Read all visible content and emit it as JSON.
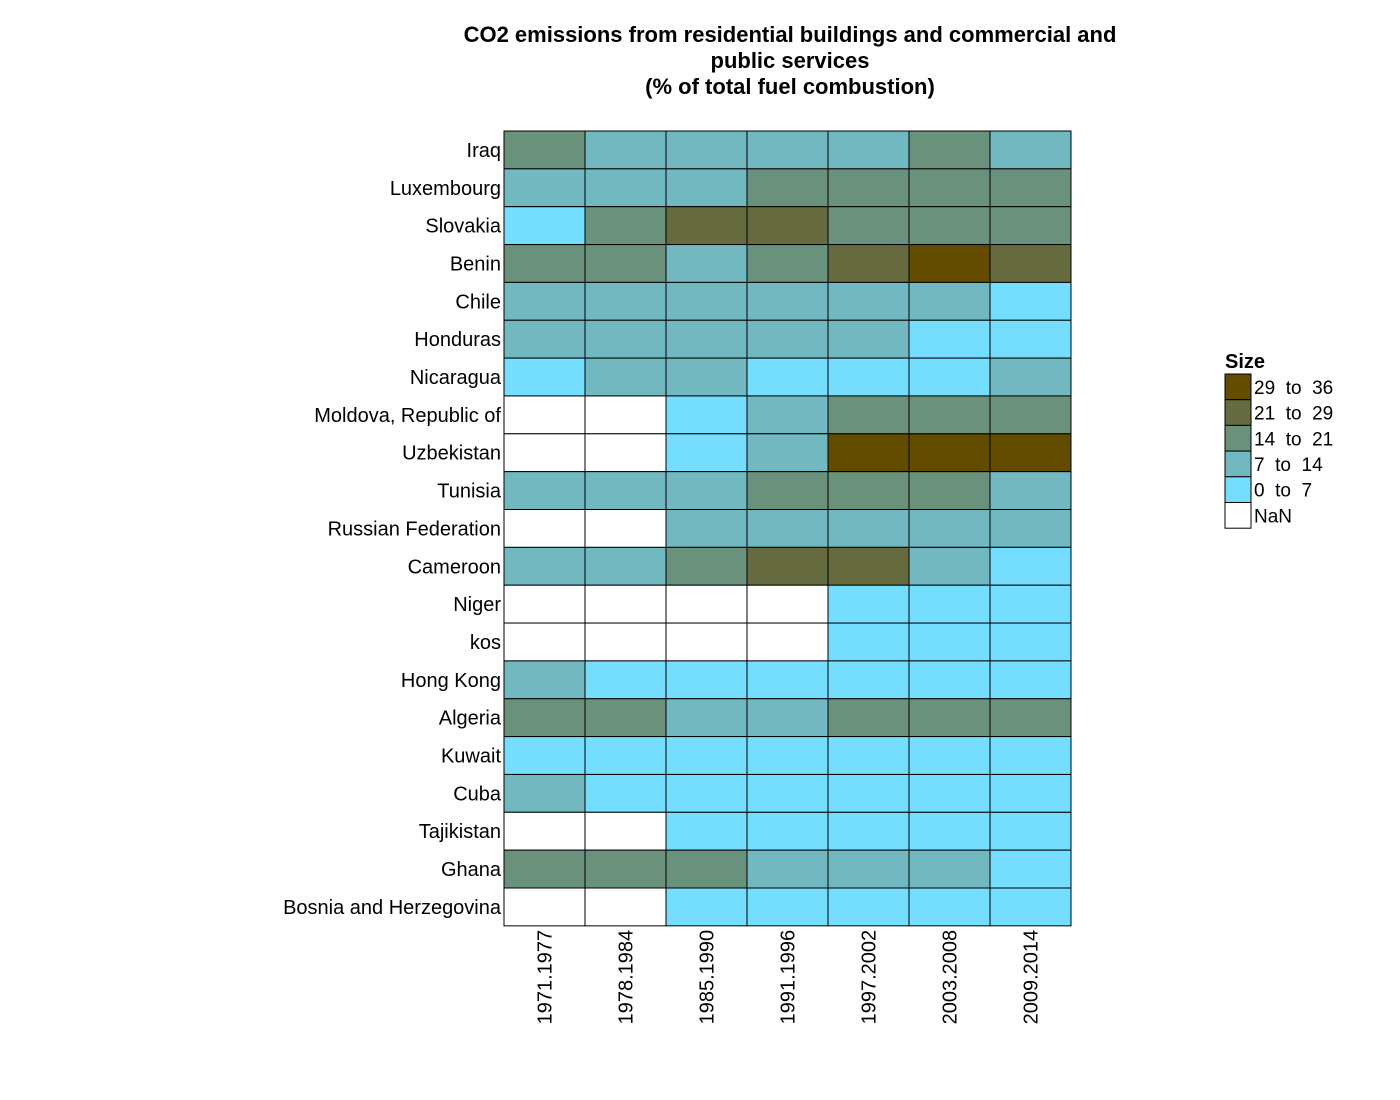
{
  "chart_data": {
    "type": "heatmap",
    "title": [
      "CO2 emissions from residential buildings and commercial and",
      "public services",
      "(% of total fuel combustion)"
    ],
    "x": [
      "1971.1977",
      "1978.1984",
      "1985.1990",
      "1991.1996",
      "1997.2002",
      "2003.2008",
      "2009.2014"
    ],
    "y": [
      "Iraq",
      "Luxembourg",
      "Slovakia",
      "Benin",
      "Chile",
      "Honduras",
      "Nicaragua",
      "Moldova, Republic of",
      "Uzbekistan",
      "Tunisia",
      "Russian Federation",
      "Cameroon",
      "Niger",
      "kos",
      "Hong Kong",
      "Algeria",
      "Kuwait",
      "Cuba",
      "Tajikistan",
      "Ghana",
      "Bosnia and Herzegovina"
    ],
    "bins": [
      {
        "label": "29  to  36",
        "color": "#634b00"
      },
      {
        "label": "21  to  29",
        "color": "#656b3f"
      },
      {
        "label": "14  to  21",
        "color": "#6a917b"
      },
      {
        "label": "7  to  14",
        "color": "#71b8c0"
      },
      {
        "label": "0  to  7",
        "color": "#75ddfd"
      },
      {
        "label": "NaN",
        "color": "#ffffff"
      }
    ],
    "legend_title": "Size",
    "legend_position": "right",
    "values": [
      [
        "14  to  21",
        "7  to  14",
        "7  to  14",
        "7  to  14",
        "7  to  14",
        "14  to  21",
        "7  to  14"
      ],
      [
        "7  to  14",
        "7  to  14",
        "7  to  14",
        "14  to  21",
        "14  to  21",
        "14  to  21",
        "14  to  21"
      ],
      [
        "0  to  7",
        "14  to  21",
        "21  to  29",
        "21  to  29",
        "14  to  21",
        "14  to  21",
        "14  to  21"
      ],
      [
        "14  to  21",
        "14  to  21",
        "7  to  14",
        "14  to  21",
        "21  to  29",
        "29  to  36",
        "21  to  29"
      ],
      [
        "7  to  14",
        "7  to  14",
        "7  to  14",
        "7  to  14",
        "7  to  14",
        "7  to  14",
        "0  to  7"
      ],
      [
        "7  to  14",
        "7  to  14",
        "7  to  14",
        "7  to  14",
        "7  to  14",
        "0  to  7",
        "0  to  7"
      ],
      [
        "0  to  7",
        "7  to  14",
        "7  to  14",
        "0  to  7",
        "0  to  7",
        "0  to  7",
        "7  to  14"
      ],
      [
        "NaN",
        "NaN",
        "0  to  7",
        "7  to  14",
        "14  to  21",
        "14  to  21",
        "14  to  21"
      ],
      [
        "NaN",
        "NaN",
        "0  to  7",
        "7  to  14",
        "29  to  36",
        "29  to  36",
        "29  to  36"
      ],
      [
        "7  to  14",
        "7  to  14",
        "7  to  14",
        "14  to  21",
        "14  to  21",
        "14  to  21",
        "7  to  14"
      ],
      [
        "NaN",
        "NaN",
        "7  to  14",
        "7  to  14",
        "7  to  14",
        "7  to  14",
        "7  to  14"
      ],
      [
        "7  to  14",
        "7  to  14",
        "14  to  21",
        "21  to  29",
        "21  to  29",
        "7  to  14",
        "0  to  7"
      ],
      [
        "NaN",
        "NaN",
        "NaN",
        "NaN",
        "0  to  7",
        "0  to  7",
        "0  to  7"
      ],
      [
        "NaN",
        "NaN",
        "NaN",
        "NaN",
        "0  to  7",
        "0  to  7",
        "0  to  7"
      ],
      [
        "7  to  14",
        "0  to  7",
        "0  to  7",
        "0  to  7",
        "0  to  7",
        "0  to  7",
        "0  to  7"
      ],
      [
        "14  to  21",
        "14  to  21",
        "7  to  14",
        "7  to  14",
        "14  to  21",
        "14  to  21",
        "14  to  21"
      ],
      [
        "0  to  7",
        "0  to  7",
        "0  to  7",
        "0  to  7",
        "0  to  7",
        "0  to  7",
        "0  to  7"
      ],
      [
        "7  to  14",
        "0  to  7",
        "0  to  7",
        "0  to  7",
        "0  to  7",
        "0  to  7",
        "0  to  7"
      ],
      [
        "NaN",
        "NaN",
        "0  to  7",
        "0  to  7",
        "0  to  7",
        "0  to  7",
        "0  to  7"
      ],
      [
        "14  to  21",
        "14  to  21",
        "14  to  21",
        "7  to  14",
        "7  to  14",
        "7  to  14",
        "0  to  7"
      ],
      [
        "NaN",
        "NaN",
        "0  to  7",
        "0  to  7",
        "0  to  7",
        "0  to  7",
        "0  to  7"
      ]
    ]
  }
}
